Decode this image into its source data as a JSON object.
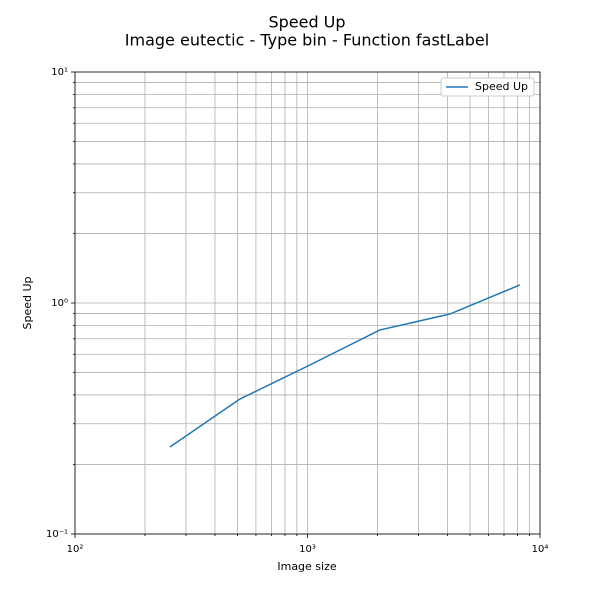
{
  "chart_data": {
    "type": "line",
    "title": "Speed Up",
    "subtitle": "Image eutectic - Type bin - Function fastLabel",
    "x_label": "Image size",
    "y_label": "Speed Up",
    "x": [
      256,
      512,
      1024,
      2048,
      4096,
      8192
    ],
    "series": [
      {
        "name": "Speed Up",
        "color": "#1f77b4",
        "values": [
          0.238,
          0.384,
          0.539,
          0.764,
          0.896,
          1.197
        ]
      }
    ],
    "x_scale": "log",
    "y_scale": "log",
    "xlim": [
      100,
      10000
    ],
    "ylim": [
      0.1,
      10
    ],
    "xticks": [
      {
        "value": 100,
        "label": "10²"
      },
      {
        "value": 1000,
        "label": "10³"
      },
      {
        "value": 10000,
        "label": "10⁴"
      }
    ],
    "yticks": [
      {
        "value": 0.1,
        "label": "10⁻¹"
      },
      {
        "value": 1,
        "label": "10⁰"
      },
      {
        "value": 10,
        "label": "10¹"
      }
    ],
    "x_minor_ticks": [
      200,
      300,
      400,
      500,
      600,
      700,
      800,
      900,
      2000,
      3000,
      4000,
      5000,
      6000,
      7000,
      8000,
      9000
    ],
    "y_minor_ticks": [
      0.2,
      0.3,
      0.4,
      0.5,
      0.6,
      0.7,
      0.8,
      0.9,
      2,
      3,
      4,
      5,
      6,
      7,
      8,
      9
    ],
    "grid": true,
    "legend": "upper right"
  }
}
